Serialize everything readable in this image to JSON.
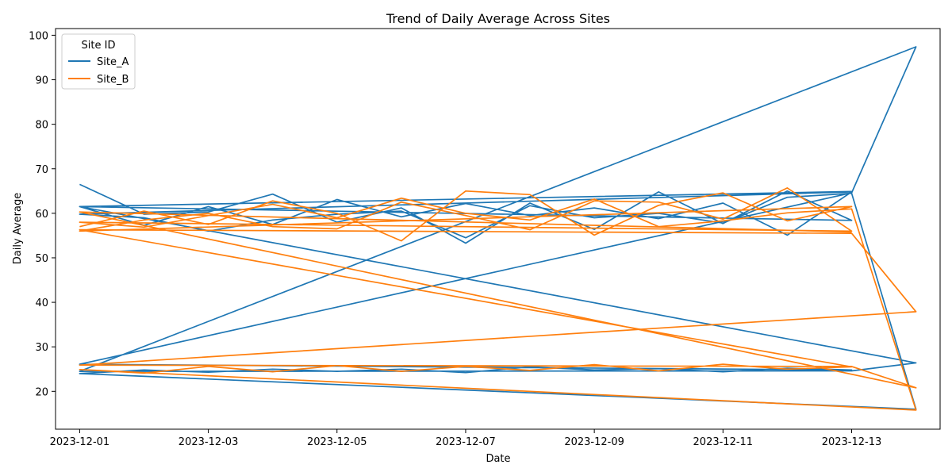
{
  "chart_data": {
    "type": "line",
    "title": "Trend of Daily Average Across Sites",
    "xlabel": "Date",
    "ylabel": "Daily Average",
    "xlim": [
      "2023-11-30T15:00",
      "2023-12-14T09:00"
    ],
    "ylim": [
      11.5,
      101.5
    ],
    "x_ticks": [
      "2023-12-01",
      "2023-12-03",
      "2023-12-05",
      "2023-12-07",
      "2023-12-09",
      "2023-12-11",
      "2023-12-13"
    ],
    "y_ticks": [
      20,
      30,
      40,
      50,
      60,
      70,
      80,
      90,
      100
    ],
    "grid": false,
    "legend": {
      "title": "Site ID",
      "position": "top-left"
    },
    "series": [
      {
        "name": "Site_A",
        "color": "#1f77b4",
        "x": [
          "2023-12-01",
          "2023-12-02",
          "2023-12-03",
          "2023-12-04",
          "2023-12-05",
          "2023-12-06",
          "2023-12-07",
          "2023-12-08",
          "2023-12-09",
          "2023-12-10",
          "2023-12-11",
          "2023-12-12",
          "2023-12-13",
          "2023-12-01",
          "2023-12-02",
          "2023-12-03",
          "2023-12-04",
          "2023-12-05",
          "2023-12-06",
          "2023-12-07",
          "2023-12-08",
          "2023-12-09",
          "2023-12-10",
          "2023-12-11",
          "2023-12-12",
          "2023-12-13",
          "2023-12-01",
          "2023-12-02",
          "2023-12-03",
          "2023-12-04",
          "2023-12-05",
          "2023-12-06",
          "2023-12-07",
          "2023-12-08",
          "2023-12-09",
          "2023-12-10",
          "2023-12-11",
          "2023-12-12",
          "2023-12-13",
          "2023-12-14",
          "2023-12-01",
          "2023-12-02",
          "2023-12-03",
          "2023-12-04",
          "2023-12-05",
          "2023-12-06",
          "2023-12-07",
          "2023-12-08",
          "2023-12-09",
          "2023-12-10",
          "2023-12-11",
          "2023-12-12",
          "2023-12-13",
          "2023-12-01",
          "2023-12-13",
          "2023-12-14",
          "2023-12-01",
          "2023-12-13",
          "2023-12-14",
          "2023-12-01",
          "2023-12-13"
        ],
        "y": [
          66.5,
          59.8,
          60.3,
          64.3,
          58.0,
          61.2,
          53.3,
          62.3,
          56.4,
          64.8,
          57.7,
          65.0,
          58.4,
          61.5,
          57.3,
          61.5,
          57.5,
          63.1,
          59.2,
          62.2,
          59.5,
          61.2,
          58.8,
          62.3,
          55.1,
          64.8,
          59.8,
          59.0,
          56.0,
          58.5,
          59.8,
          60.5,
          54.5,
          61.7,
          59.0,
          60.0,
          57.8,
          63.6,
          64.5,
          16.0,
          24.0,
          24.8,
          24.3,
          25.0,
          24.5,
          25.0,
          24.2,
          25.5,
          24.8,
          25.1,
          24.4,
          25.2,
          24.8,
          26.1,
          64.6,
          97.4,
          24.5,
          24.6,
          26.4,
          61.5,
          64.9
        ]
      },
      {
        "name": "Site_B",
        "color": "#ff7f0e",
        "x": [
          "2023-12-01",
          "2023-12-02",
          "2023-12-03",
          "2023-12-04",
          "2023-12-05",
          "2023-12-06",
          "2023-12-07",
          "2023-12-08",
          "2023-12-09",
          "2023-12-10",
          "2023-12-11",
          "2023-12-12",
          "2023-12-13",
          "2023-12-01",
          "2023-12-02",
          "2023-12-03",
          "2023-12-04",
          "2023-12-05",
          "2023-12-06",
          "2023-12-07",
          "2023-12-08",
          "2023-12-09",
          "2023-12-10",
          "2023-12-11",
          "2023-12-12",
          "2023-12-13",
          "2023-12-01",
          "2023-12-02",
          "2023-12-03",
          "2023-12-04",
          "2023-12-05",
          "2023-12-06",
          "2023-12-07",
          "2023-12-08",
          "2023-12-09",
          "2023-12-10",
          "2023-12-11",
          "2023-12-12",
          "2023-12-13",
          "2023-12-14",
          "2023-12-01",
          "2023-12-02",
          "2023-12-03",
          "2023-12-04",
          "2023-12-05",
          "2023-12-06",
          "2023-12-07",
          "2023-12-08",
          "2023-12-09",
          "2023-12-10",
          "2023-12-11",
          "2023-12-12",
          "2023-12-13",
          "2023-12-01",
          "2023-12-13",
          "2023-12-14",
          "2023-12-01",
          "2023-12-13",
          "2023-12-14",
          "2023-12-01",
          "2023-12-13"
        ],
        "y": [
          57.0,
          60.5,
          57.5,
          62.8,
          60.0,
          53.8,
          65.0,
          64.2,
          55.1,
          61.8,
          64.6,
          58.3,
          61.5,
          56.0,
          58.5,
          60.0,
          57.0,
          56.5,
          62.5,
          59.5,
          56.3,
          62.8,
          62.5,
          58.7,
          65.7,
          56.0,
          58.0,
          56.9,
          59.5,
          62.0,
          59.0,
          63.4,
          60.0,
          58.5,
          63.2,
          57.0,
          58.3,
          60.1,
          61.0,
          15.8,
          24.9,
          24.1,
          25.6,
          24.4,
          25.8,
          24.5,
          25.6,
          24.7,
          26.0,
          24.6,
          26.1,
          25.0,
          25.5,
          56.3,
          55.5,
          37.9,
          25.9,
          25.6,
          20.8,
          60.3,
          55.8
        ]
      }
    ]
  }
}
